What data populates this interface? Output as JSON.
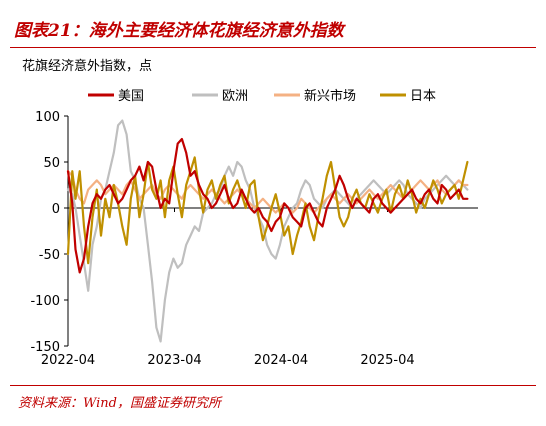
{
  "figure": {
    "title": "图表21：海外主要经济体花旗经济意外指数",
    "source": "资料来源：Wind，国盛证券研究所"
  },
  "chart_data": {
    "type": "line",
    "unit_label": "花旗经济意外指数，点",
    "ylim": [
      -150,
      100
    ],
    "yticks": [
      100,
      50,
      0,
      -50,
      -100,
      -150
    ],
    "ytick_labels": [
      "100",
      "50",
      "0",
      "-50",
      "-100",
      "-150"
    ],
    "xlim": [
      2022.25,
      2026.1
    ],
    "xticks": [
      2022.25,
      2023.25,
      2024.25,
      2025.25
    ],
    "xtick_labels": [
      "2022-04",
      "2023-04",
      "2024-04",
      "2025-04"
    ],
    "grid": false,
    "legend_position": "top",
    "series": [
      {
        "name": "美国",
        "color": "#c00000",
        "x": [
          2022.25,
          2022.29,
          2022.32,
          2022.36,
          2022.4,
          2022.44,
          2022.48,
          2022.52,
          2022.56,
          2022.6,
          2022.64,
          2022.68,
          2022.72,
          2022.76,
          2022.8,
          2022.84,
          2022.88,
          2022.92,
          2022.96,
          2023.0,
          2023.04,
          2023.08,
          2023.12,
          2023.16,
          2023.2,
          2023.24,
          2023.28,
          2023.32,
          2023.36,
          2023.4,
          2023.44,
          2023.48,
          2023.52,
          2023.56,
          2023.6,
          2023.64,
          2023.68,
          2023.72,
          2023.76,
          2023.8,
          2023.84,
          2023.88,
          2023.92,
          2023.96,
          2024.0,
          2024.04,
          2024.08,
          2024.12,
          2024.16,
          2024.2,
          2024.24,
          2024.28,
          2024.32,
          2024.36,
          2024.4,
          2024.44,
          2024.48,
          2024.52,
          2024.56,
          2024.6,
          2024.64,
          2024.68,
          2024.72,
          2024.76,
          2024.8,
          2024.84,
          2024.88,
          2024.92,
          2024.96,
          2025.0,
          2025.04,
          2025.08,
          2025.12,
          2025.16,
          2025.2,
          2025.24,
          2025.28,
          2025.32,
          2025.36,
          2025.4,
          2025.44,
          2025.48,
          2025.52,
          2025.56,
          2025.6,
          2025.64,
          2025.68,
          2025.72,
          2025.76,
          2025.8,
          2025.84,
          2025.88,
          2025.92,
          2025.96,
          2026.0
        ],
        "y": [
          40,
          5,
          -45,
          -70,
          -55,
          -20,
          5,
          15,
          10,
          20,
          25,
          15,
          5,
          10,
          20,
          30,
          35,
          45,
          30,
          50,
          45,
          20,
          0,
          10,
          5,
          40,
          70,
          75,
          60,
          35,
          40,
          25,
          15,
          10,
          0,
          5,
          15,
          25,
          10,
          0,
          5,
          20,
          10,
          0,
          -5,
          0,
          -10,
          -15,
          -25,
          -15,
          -10,
          5,
          0,
          -10,
          -15,
          -20,
          0,
          5,
          -5,
          -15,
          -20,
          0,
          10,
          20,
          35,
          25,
          10,
          0,
          10,
          5,
          0,
          -5,
          10,
          15,
          5,
          0,
          -5,
          0,
          5,
          10,
          15,
          20,
          10,
          5,
          15,
          20,
          10,
          5,
          25,
          20,
          10,
          15,
          20,
          10,
          10
        ]
      },
      {
        "name": "欧洲",
        "color": "#bfbfbf",
        "x": [
          2022.25,
          2022.29,
          2022.32,
          2022.36,
          2022.4,
          2022.44,
          2022.48,
          2022.52,
          2022.56,
          2022.6,
          2022.64,
          2022.68,
          2022.72,
          2022.76,
          2022.8,
          2022.84,
          2022.88,
          2022.92,
          2022.96,
          2023.0,
          2023.04,
          2023.08,
          2023.12,
          2023.16,
          2023.2,
          2023.24,
          2023.28,
          2023.32,
          2023.36,
          2023.4,
          2023.44,
          2023.48,
          2023.52,
          2023.56,
          2023.6,
          2023.64,
          2023.68,
          2023.72,
          2023.76,
          2023.8,
          2023.84,
          2023.88,
          2023.92,
          2023.96,
          2024.0,
          2024.04,
          2024.08,
          2024.12,
          2024.16,
          2024.2,
          2024.24,
          2024.28,
          2024.32,
          2024.36,
          2024.4,
          2024.44,
          2024.48,
          2024.52,
          2024.56,
          2024.6,
          2024.64,
          2024.68,
          2024.72,
          2024.76,
          2024.8,
          2024.84,
          2024.88,
          2024.92,
          2024.96,
          2025.0,
          2025.04,
          2025.08,
          2025.12,
          2025.16,
          2025.2,
          2025.24,
          2025.28,
          2025.32,
          2025.36,
          2025.4,
          2025.44,
          2025.48,
          2025.52,
          2025.56,
          2025.6,
          2025.64,
          2025.68,
          2025.72,
          2025.76,
          2025.8,
          2025.84,
          2025.88,
          2025.92,
          2025.96,
          2026.0
        ],
        "y": [
          20,
          15,
          0,
          -30,
          -60,
          -90,
          -40,
          -20,
          10,
          20,
          40,
          60,
          90,
          95,
          80,
          40,
          30,
          10,
          0,
          -40,
          -80,
          -130,
          -145,
          -100,
          -70,
          -55,
          -65,
          -60,
          -40,
          -30,
          -20,
          -25,
          -5,
          0,
          5,
          15,
          20,
          35,
          45,
          35,
          50,
          45,
          30,
          20,
          0,
          -10,
          -20,
          -40,
          -50,
          -55,
          -40,
          -20,
          -10,
          0,
          5,
          20,
          30,
          25,
          10,
          5,
          0,
          10,
          15,
          20,
          15,
          10,
          5,
          0,
          10,
          15,
          20,
          25,
          30,
          25,
          20,
          15,
          20,
          25,
          30,
          25,
          15,
          10,
          5,
          0,
          10,
          15,
          20,
          25,
          30,
          35,
          30,
          25,
          30,
          25,
          20
        ]
      },
      {
        "name": "新兴市场",
        "color": "#f4b183",
        "x": [
          2022.25,
          2022.29,
          2022.32,
          2022.36,
          2022.4,
          2022.44,
          2022.48,
          2022.52,
          2022.56,
          2022.6,
          2022.64,
          2022.68,
          2022.72,
          2022.76,
          2022.8,
          2022.84,
          2022.88,
          2022.92,
          2022.96,
          2023.0,
          2023.04,
          2023.08,
          2023.12,
          2023.16,
          2023.2,
          2023.24,
          2023.28,
          2023.32,
          2023.36,
          2023.4,
          2023.44,
          2023.48,
          2023.52,
          2023.56,
          2023.6,
          2023.64,
          2023.68,
          2023.72,
          2023.76,
          2023.8,
          2023.84,
          2023.88,
          2023.92,
          2023.96,
          2024.0,
          2024.04,
          2024.08,
          2024.12,
          2024.16,
          2024.2,
          2024.24,
          2024.28,
          2024.32,
          2024.36,
          2024.4,
          2024.44,
          2024.48,
          2024.52,
          2024.56,
          2024.6,
          2024.64,
          2024.68,
          2024.72,
          2024.76,
          2024.8,
          2024.84,
          2024.88,
          2024.92,
          2024.96,
          2025.0,
          2025.04,
          2025.08,
          2025.12,
          2025.16,
          2025.2,
          2025.24,
          2025.28,
          2025.32,
          2025.36,
          2025.4,
          2025.44,
          2025.48,
          2025.52,
          2025.56,
          2025.6,
          2025.64,
          2025.68,
          2025.72,
          2025.76,
          2025.8,
          2025.84,
          2025.88,
          2025.92,
          2025.96,
          2026.0
        ],
        "y": [
          40,
          35,
          20,
          10,
          5,
          20,
          25,
          30,
          25,
          15,
          20,
          25,
          20,
          15,
          25,
          30,
          20,
          10,
          15,
          20,
          25,
          15,
          10,
          20,
          25,
          20,
          15,
          10,
          20,
          25,
          20,
          15,
          10,
          15,
          20,
          15,
          10,
          5,
          10,
          15,
          20,
          15,
          10,
          5,
          0,
          5,
          10,
          5,
          0,
          -5,
          0,
          5,
          0,
          -5,
          0,
          10,
          5,
          0,
          -5,
          0,
          5,
          10,
          15,
          10,
          5,
          10,
          15,
          10,
          5,
          10,
          15,
          20,
          15,
          10,
          15,
          20,
          25,
          20,
          15,
          10,
          15,
          20,
          25,
          30,
          25,
          20,
          25,
          30,
          20,
          15,
          20,
          25,
          30,
          25,
          25
        ]
      },
      {
        "name": "日本",
        "color": "#bf9000",
        "x": [
          2022.25,
          2022.29,
          2022.32,
          2022.36,
          2022.4,
          2022.44,
          2022.48,
          2022.52,
          2022.56,
          2022.6,
          2022.64,
          2022.68,
          2022.72,
          2022.76,
          2022.8,
          2022.84,
          2022.88,
          2022.92,
          2022.96,
          2023.0,
          2023.04,
          2023.08,
          2023.12,
          2023.16,
          2023.2,
          2023.24,
          2023.28,
          2023.32,
          2023.36,
          2023.4,
          2023.44,
          2023.48,
          2023.52,
          2023.56,
          2023.6,
          2023.64,
          2023.68,
          2023.72,
          2023.76,
          2023.8,
          2023.84,
          2023.88,
          2023.92,
          2023.96,
          2024.0,
          2024.04,
          2024.08,
          2024.12,
          2024.16,
          2024.2,
          2024.24,
          2024.28,
          2024.32,
          2024.36,
          2024.4,
          2024.44,
          2024.48,
          2024.52,
          2024.56,
          2024.6,
          2024.64,
          2024.68,
          2024.72,
          2024.76,
          2024.8,
          2024.84,
          2024.88,
          2024.92,
          2024.96,
          2025.0,
          2025.04,
          2025.08,
          2025.12,
          2025.16,
          2025.2,
          2025.24,
          2025.28,
          2025.32,
          2025.36,
          2025.4,
          2025.44,
          2025.48,
          2025.52,
          2025.56,
          2025.6,
          2025.64,
          2025.68,
          2025.72,
          2025.76,
          2025.8,
          2025.84,
          2025.88,
          2025.92,
          2025.96,
          2026.0
        ],
        "y": [
          -50,
          40,
          10,
          40,
          -20,
          -60,
          -10,
          20,
          -30,
          10,
          -10,
          25,
          5,
          -20,
          -40,
          10,
          35,
          -10,
          15,
          50,
          20,
          10,
          30,
          -10,
          30,
          45,
          15,
          -10,
          25,
          40,
          55,
          20,
          -5,
          20,
          30,
          10,
          25,
          35,
          5,
          20,
          30,
          15,
          0,
          25,
          30,
          -10,
          -35,
          -20,
          0,
          15,
          -5,
          -30,
          -20,
          -50,
          -30,
          -15,
          5,
          -20,
          -35,
          -10,
          10,
          35,
          50,
          20,
          -10,
          -20,
          -10,
          10,
          20,
          5,
          0,
          15,
          5,
          -5,
          10,
          20,
          -5,
          15,
          25,
          10,
          30,
          15,
          -5,
          10,
          0,
          15,
          30,
          20,
          5,
          15,
          20,
          25,
          10,
          30,
          50
        ]
      }
    ]
  }
}
